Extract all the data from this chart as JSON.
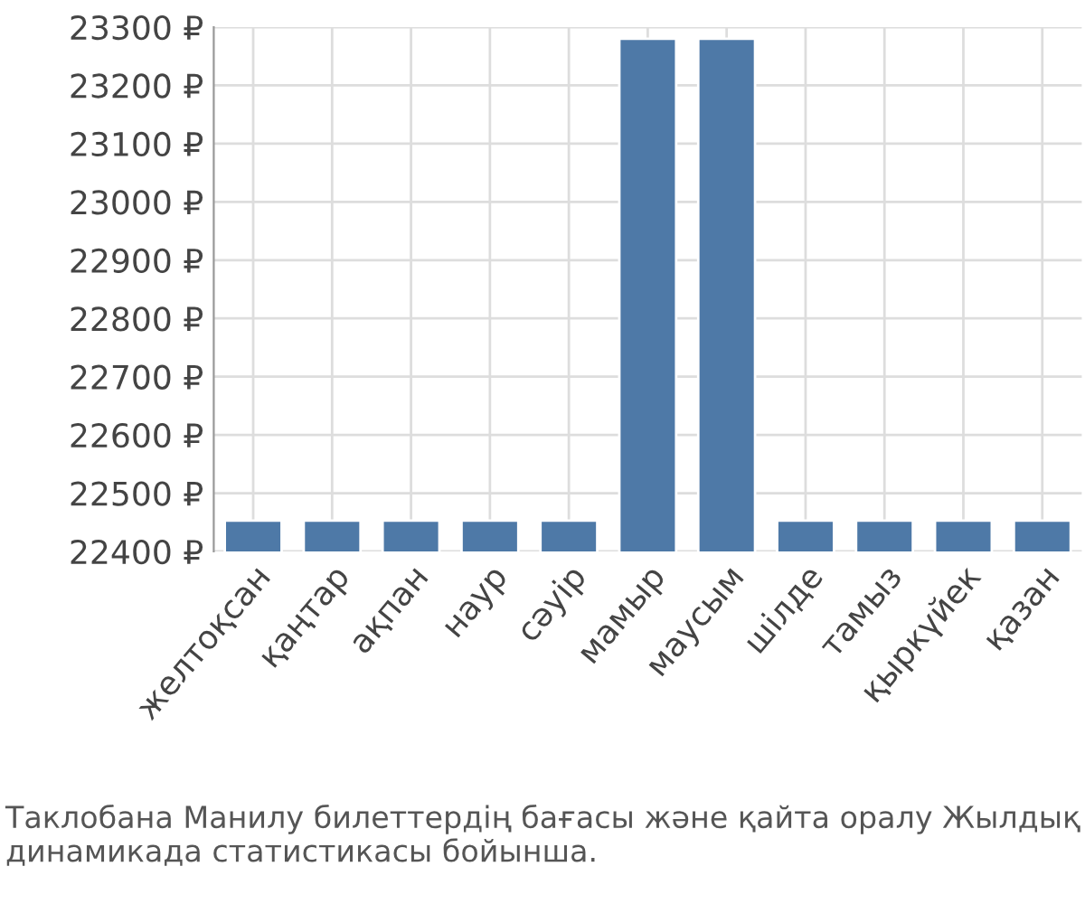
{
  "chart_data": {
    "type": "bar",
    "categories": [
      "желтоқсан",
      "қаңтар",
      "ақпан",
      "наур",
      "сәуір",
      "мамыр",
      "маусым",
      "шілде",
      "тамыз",
      "қыркүйек",
      "қазан"
    ],
    "values": [
      22453,
      22453,
      22453,
      22453,
      22453,
      23280,
      23280,
      22453,
      22453,
      22453,
      22453
    ],
    "color": "#4e79a7",
    "ylim": [
      22400,
      23300
    ],
    "yticks": [
      {
        "value": 22400,
        "label": "22400 ₽"
      },
      {
        "value": 22500,
        "label": "22500 ₽"
      },
      {
        "value": 22600,
        "label": "22600 ₽"
      },
      {
        "value": 22700,
        "label": "22700 ₽"
      },
      {
        "value": 22800,
        "label": "22800 ₽"
      },
      {
        "value": 22900,
        "label": "22900 ₽"
      },
      {
        "value": 23000,
        "label": "23000 ₽"
      },
      {
        "value": 23100,
        "label": "23100 ₽"
      },
      {
        "value": 23200,
        "label": "23200 ₽"
      },
      {
        "value": 23300,
        "label": "23300 ₽"
      }
    ],
    "grid": true,
    "annotations": [
      "Таклобана Манилу билеттердің бағасы және қайта оралу Жылдық динамикада статистикасы бойынша."
    ]
  }
}
